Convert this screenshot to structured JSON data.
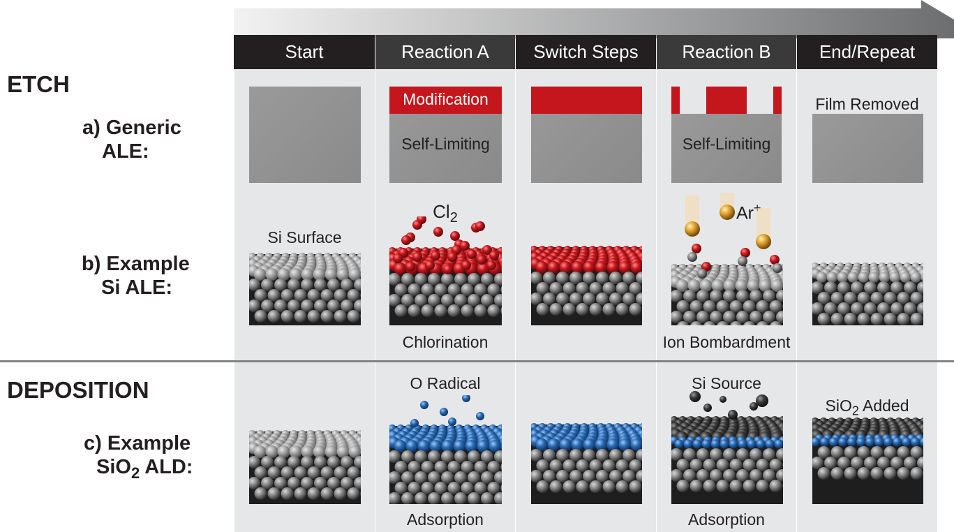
{
  "steps": [
    "Start",
    "Reaction A",
    "Switch Steps",
    "Reaction B",
    "End/Repeat"
  ],
  "sections": {
    "etch": "ETCH",
    "deposition": "DEPOSITION"
  },
  "rows": {
    "a": {
      "line1": "a) Generic",
      "line2": "ALE:"
    },
    "b": {
      "line1": "b) Example",
      "line2": "Si ALE:"
    },
    "c": {
      "line1": "c) Example",
      "line2_pre": "SiO",
      "line2_sub": "2",
      "line2_post": " ALD:"
    }
  },
  "generic": {
    "modification": "Modification",
    "self_limiting_a": "Self-Limiting",
    "self_limiting_b": "Self-Limiting",
    "film_removed": "Film Removed"
  },
  "si": {
    "surface": "Si Surface",
    "cl_pre": "Cl",
    "cl_sub": "2",
    "ar_pre": "Ar",
    "ar_sup": "+",
    "chlorination": "Chlorination",
    "ion_bombardment": "Ion Bombardment"
  },
  "sio2": {
    "o_radical": "O Radical",
    "si_source": "Si Source",
    "added_pre": "SiO",
    "added_sub": "2",
    "added_post": " Added",
    "adsorption_a": "Adsorption",
    "adsorption_b": "Adsorption"
  },
  "colors": {
    "header": "#231f20",
    "header_alt": "#3a3a3a",
    "column": "#e6e7e8",
    "film": "#8f8f8f",
    "modification": "#c4161c",
    "chlorine": "#c4161c",
    "oxygen": "#2a6ab0",
    "argon": "#e0a030",
    "silicon": "#555555"
  }
}
